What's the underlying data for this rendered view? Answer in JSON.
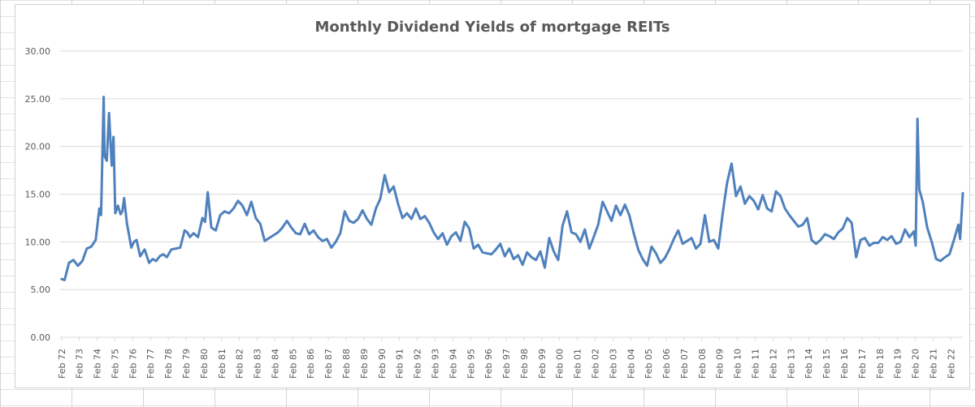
{
  "chart_data": {
    "type": "line",
    "title": "Monthly Dividend Yields of mortgage REITs",
    "xlabel": "",
    "ylabel": "",
    "ylim": [
      0,
      30
    ],
    "yticks": [
      "0.00",
      "5.00",
      "10.00",
      "15.00",
      "20.00",
      "25.00",
      "30.00"
    ],
    "grid": true,
    "legend": "none",
    "color": "#4F81BD",
    "categories": [
      "Feb 72",
      "Feb 73",
      "Feb 74",
      "Feb 75",
      "Feb 76",
      "Feb 77",
      "Feb 78",
      "Feb 79",
      "Feb 80",
      "Feb 81",
      "Feb 82",
      "Feb 83",
      "Feb 84",
      "Feb 85",
      "Feb 86",
      "Feb 87",
      "Feb 88",
      "Feb 89",
      "Feb 90",
      "Feb 91",
      "Feb 92",
      "Feb 93",
      "Feb 94",
      "Feb 95",
      "Feb 96",
      "Feb 97",
      "Feb 98",
      "Feb 99",
      "Feb 00",
      "Feb 01",
      "Feb 02",
      "Feb 03",
      "Feb 04",
      "Feb 05",
      "Feb 06",
      "Feb 07",
      "Feb 08",
      "Feb 09",
      "Feb 10",
      "Feb 11",
      "Feb 12",
      "Feb 13",
      "Feb 14",
      "Feb 15",
      "Feb 16",
      "Feb 17",
      "Feb 18",
      "Feb 19",
      "Feb 20",
      "Feb 21",
      "Feb 22"
    ],
    "series": [
      {
        "x": [
          1972.08,
          1972.25,
          1972.5,
          1972.75,
          1973.0,
          1973.25,
          1973.5,
          1973.75,
          1974.0,
          1974.2,
          1974.3,
          1974.45,
          1974.5,
          1974.62,
          1974.75,
          1974.9,
          1975.0,
          1975.1,
          1975.25,
          1975.4,
          1975.5,
          1975.6,
          1975.75,
          1976.0,
          1976.15,
          1976.3,
          1976.5,
          1976.75,
          1977.0,
          1977.2,
          1977.4,
          1977.6,
          1977.8,
          1978.0,
          1978.25,
          1978.5,
          1978.75,
          1979.0,
          1979.15,
          1979.3,
          1979.5,
          1979.75,
          1980.0,
          1980.15,
          1980.3,
          1980.5,
          1980.75,
          1981.0,
          1981.25,
          1981.5,
          1981.75,
          1982.0,
          1982.25,
          1982.5,
          1982.75,
          1983.0,
          1983.25,
          1983.5,
          1983.75,
          1984.0,
          1984.25,
          1984.5,
          1984.75,
          1985.0,
          1985.25,
          1985.5,
          1985.75,
          1986.0,
          1986.25,
          1986.5,
          1986.75,
          1987.0,
          1987.25,
          1987.5,
          1987.75,
          1988.0,
          1988.25,
          1988.5,
          1988.75,
          1989.0,
          1989.25,
          1989.5,
          1989.75,
          1990.0,
          1990.25,
          1990.5,
          1990.75,
          1991.0,
          1991.25,
          1991.5,
          1991.75,
          1992.0,
          1992.25,
          1992.5,
          1992.75,
          1993.0,
          1993.25,
          1993.5,
          1993.75,
          1994.0,
          1994.25,
          1994.5,
          1994.75,
          1995.0,
          1995.25,
          1995.5,
          1995.75,
          1996.0,
          1996.25,
          1996.5,
          1996.75,
          1997.0,
          1997.25,
          1997.5,
          1997.75,
          1998.0,
          1998.25,
          1998.5,
          1998.75,
          1999.0,
          1999.25,
          1999.5,
          1999.75,
          2000.0,
          2000.25,
          2000.5,
          2000.75,
          2001.0,
          2001.25,
          2001.5,
          2001.75,
          2002.0,
          2002.25,
          2002.5,
          2002.75,
          2003.0,
          2003.25,
          2003.5,
          2003.75,
          2004.0,
          2004.25,
          2004.5,
          2004.75,
          2005.0,
          2005.25,
          2005.5,
          2005.75,
          2006.0,
          2006.25,
          2006.5,
          2006.75,
          2007.0,
          2007.25,
          2007.5,
          2007.75,
          2008.0,
          2008.25,
          2008.5,
          2008.75,
          2009.0,
          2009.25,
          2009.5,
          2009.75,
          2010.0,
          2010.25,
          2010.5,
          2010.75,
          2011.0,
          2011.25,
          2011.5,
          2011.75,
          2012.0,
          2012.25,
          2012.5,
          2012.75,
          2013.0,
          2013.25,
          2013.5,
          2013.75,
          2014.0,
          2014.25,
          2014.5,
          2014.75,
          2015.0,
          2015.25,
          2015.5,
          2015.75,
          2016.0,
          2016.25,
          2016.5,
          2016.75,
          2017.0,
          2017.25,
          2017.5,
          2017.75,
          2018.0,
          2018.25,
          2018.5,
          2018.75,
          2019.0,
          2019.25,
          2019.5,
          2019.75,
          2020.0,
          2020.1,
          2020.2,
          2020.3,
          2020.5,
          2020.75,
          2021.0,
          2021.25,
          2021.5,
          2021.75,
          2022.0,
          2022.25,
          2022.5,
          2022.6,
          2022.75
        ],
        "y": [
          6.1,
          6.0,
          7.8,
          8.1,
          7.5,
          8.0,
          9.3,
          9.5,
          10.2,
          13.5,
          12.8,
          25.2,
          19.0,
          18.5,
          23.5,
          18.0,
          21.0,
          13.0,
          13.8,
          12.9,
          13.2,
          14.6,
          12.0,
          9.4,
          10.0,
          10.2,
          8.5,
          9.2,
          7.8,
          8.2,
          8.0,
          8.5,
          8.7,
          8.4,
          9.2,
          9.3,
          9.4,
          11.2,
          11.0,
          10.5,
          10.9,
          10.5,
          12.5,
          12.1,
          15.2,
          11.5,
          11.2,
          12.8,
          13.2,
          13.0,
          13.5,
          14.3,
          13.8,
          12.8,
          14.2,
          12.5,
          11.9,
          10.1,
          10.4,
          10.7,
          11.0,
          11.5,
          12.2,
          11.5,
          10.9,
          10.8,
          11.9,
          10.8,
          11.2,
          10.5,
          10.1,
          10.3,
          9.4,
          10.0,
          10.9,
          13.2,
          12.2,
          12.0,
          12.4,
          13.3,
          12.4,
          11.8,
          13.5,
          14.5,
          17.0,
          15.2,
          15.8,
          14.0,
          12.5,
          13.0,
          12.4,
          13.5,
          12.4,
          12.7,
          12.0,
          11.0,
          10.3,
          10.9,
          9.7,
          10.6,
          11.0,
          10.1,
          12.1,
          11.4,
          9.3,
          9.7,
          8.9,
          8.8,
          8.7,
          9.2,
          9.8,
          8.5,
          9.3,
          8.2,
          8.6,
          7.6,
          8.9,
          8.4,
          8.1,
          9.0,
          7.3,
          10.4,
          9.0,
          8.1,
          11.7,
          13.2,
          11.0,
          10.8,
          10.0,
          11.3,
          9.3,
          10.5,
          11.8,
          14.2,
          13.2,
          12.2,
          13.8,
          12.8,
          13.9,
          12.8,
          10.9,
          9.2,
          8.2,
          7.5,
          9.5,
          8.8,
          7.8,
          8.3,
          9.2,
          10.3,
          11.2,
          9.8,
          10.1,
          10.4,
          9.3,
          9.8,
          12.8,
          10.0,
          10.2,
          9.3,
          13.0,
          16.2,
          18.2,
          14.8,
          15.8,
          14.0,
          14.8,
          14.3,
          13.4,
          14.9,
          13.5,
          13.2,
          15.3,
          14.8,
          13.5,
          12.8,
          12.2,
          11.6,
          11.8,
          12.5,
          10.2,
          9.8,
          10.2,
          10.8,
          10.6,
          10.3,
          11.0,
          11.4,
          12.5,
          12.0,
          8.4,
          10.2,
          10.4,
          9.6,
          9.9,
          9.9,
          10.5,
          10.2,
          10.6,
          9.8,
          10.0,
          11.3,
          10.5,
          11.1,
          9.6,
          22.9,
          15.5,
          14.2,
          11.5,
          10.0,
          8.2,
          8.0,
          8.4,
          8.7,
          10.2,
          11.8,
          10.3,
          15.1
        ]
      }
    ]
  }
}
